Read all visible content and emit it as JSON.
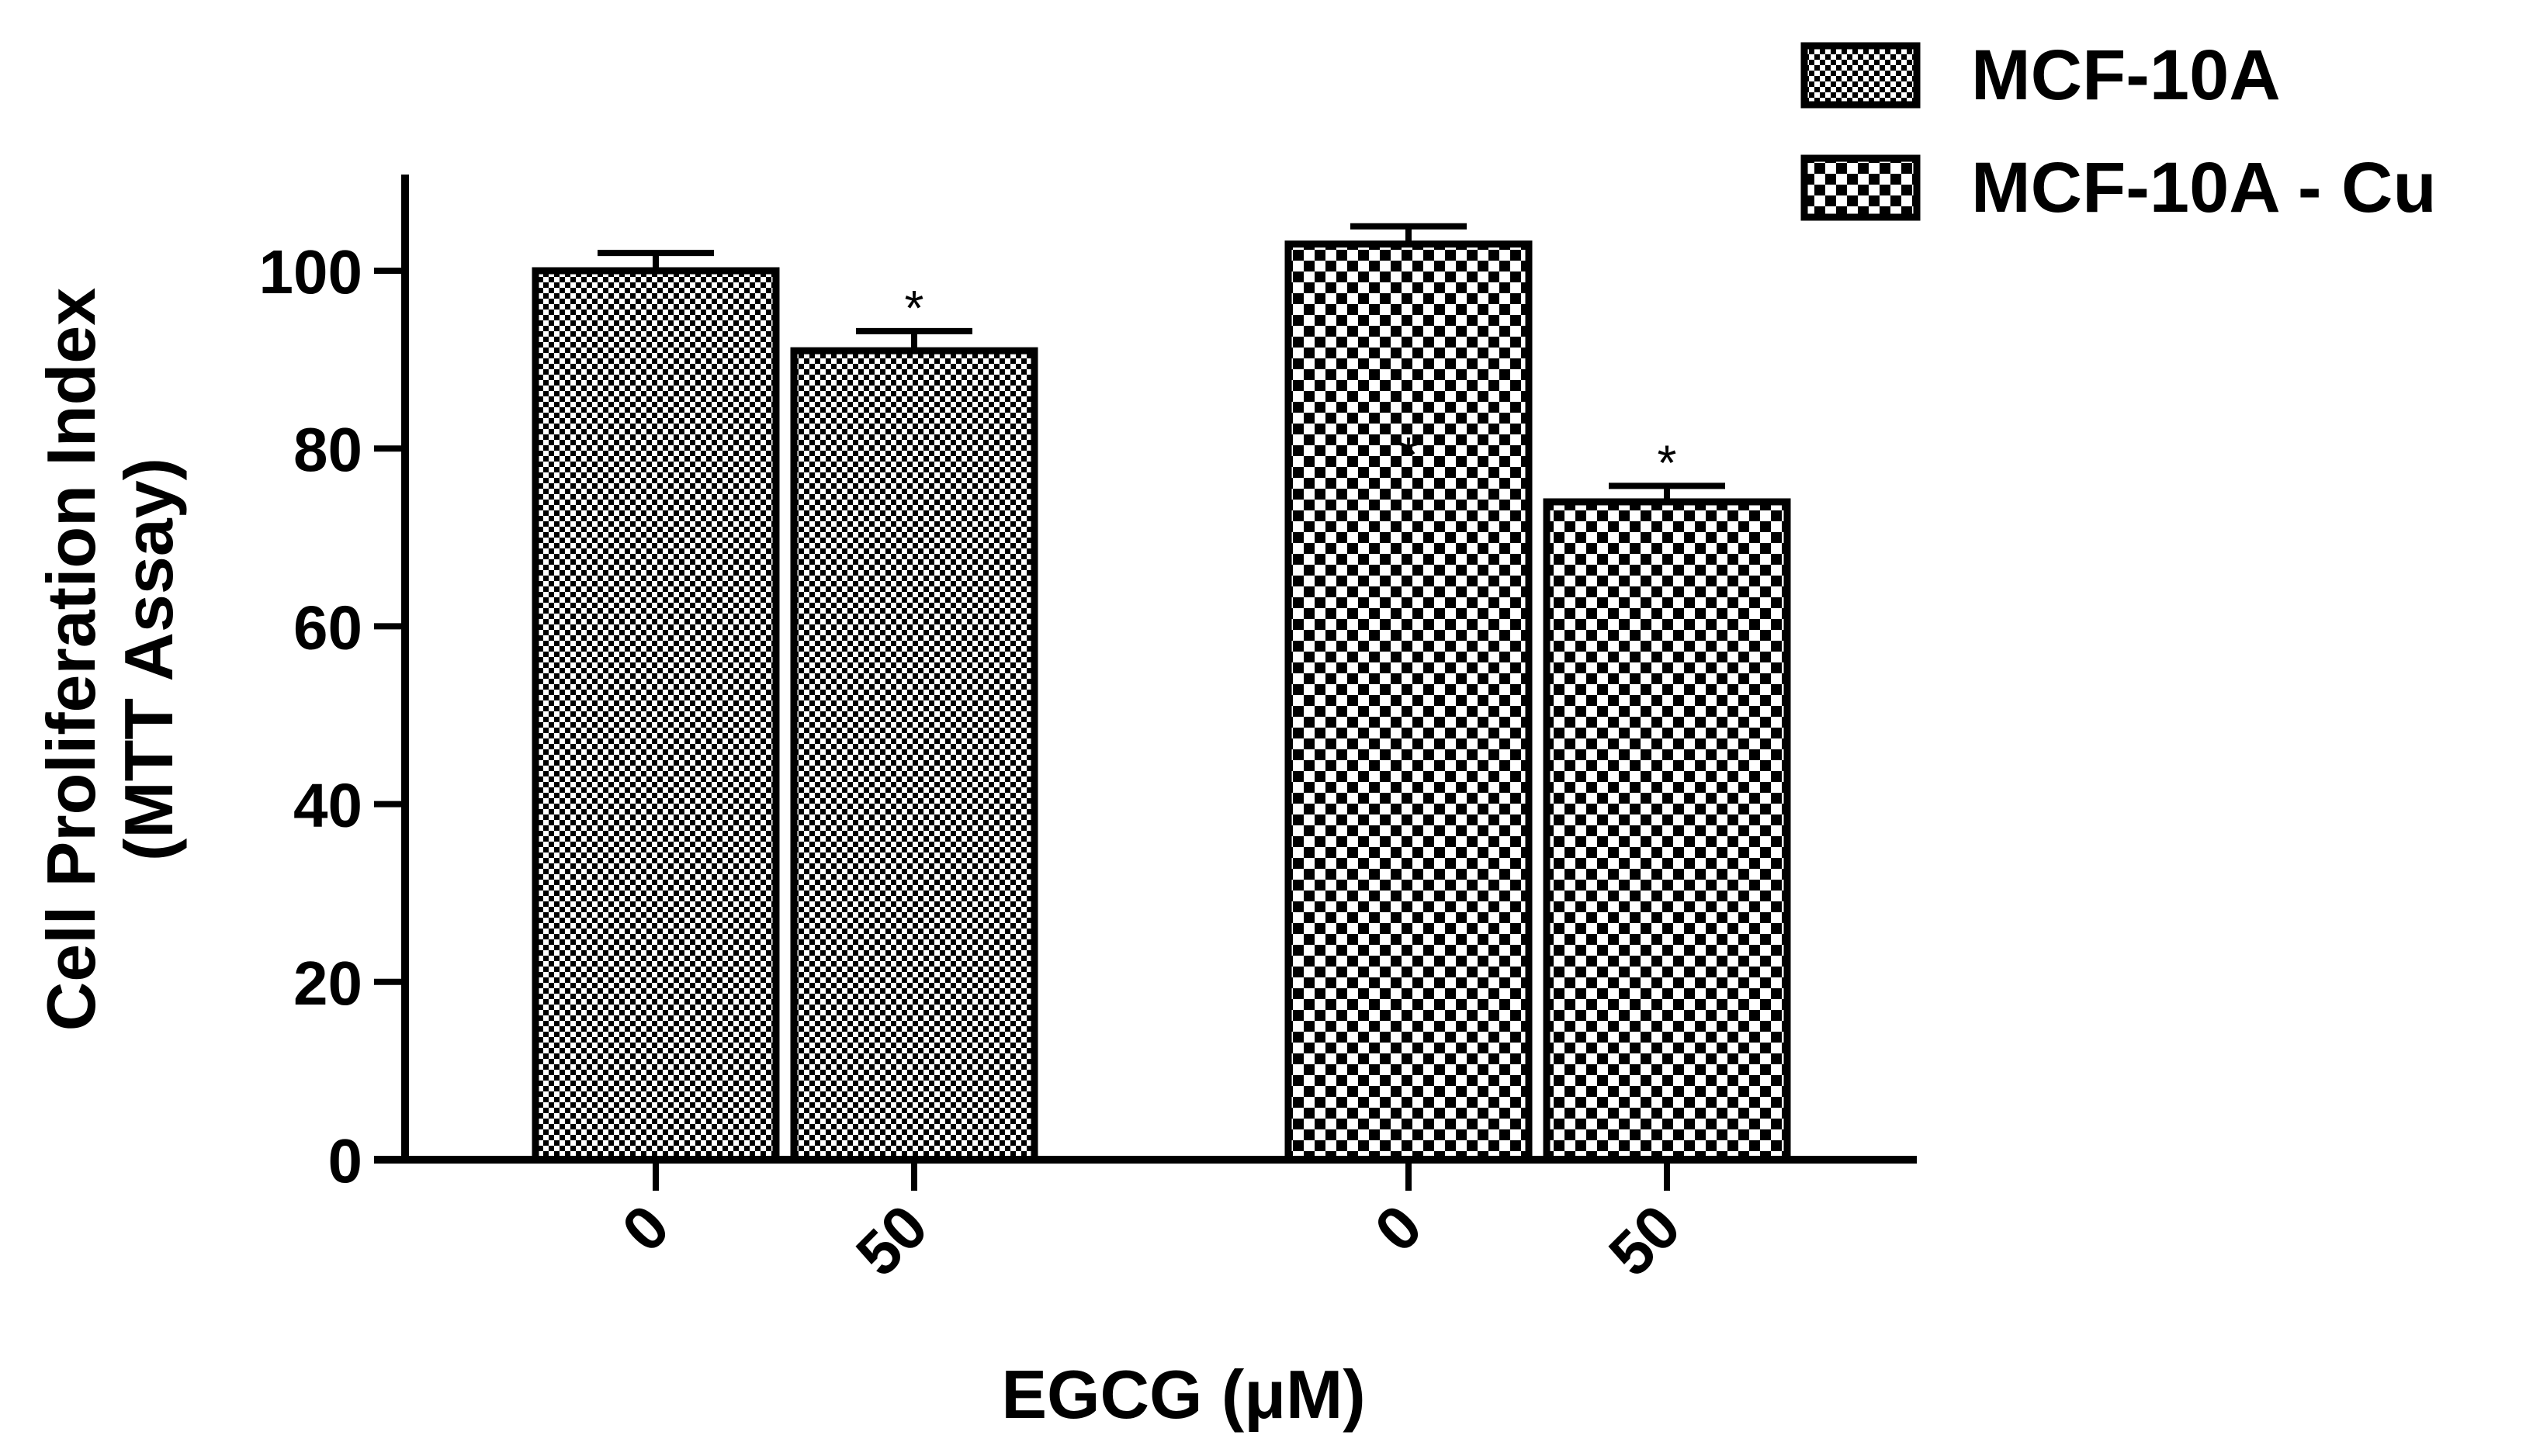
{
  "chart_data": {
    "type": "bar",
    "categories": [
      "0",
      "50"
    ],
    "series": [
      {
        "name": "MCF-10A",
        "values": [
          100,
          91
        ],
        "errors": [
          2,
          2.2
        ],
        "significance": [
          "",
          "*"
        ],
        "pattern": "fine-checker"
      },
      {
        "name": "MCF-10A - Cu",
        "values": [
          103,
          74
        ],
        "errors": [
          2,
          1.8
        ],
        "significance": [
          "*",
          "*"
        ],
        "pattern": "coarse-checker"
      }
    ],
    "title": "",
    "xlabel": "EGCG (μM)",
    "ylabel": [
      "Cell Proliferation Index",
      "(MTT Assay)"
    ],
    "ylim": [
      0,
      100
    ],
    "yticks": [
      0,
      20,
      40,
      60,
      80,
      100
    ],
    "grid": false,
    "legend": {
      "position": "top-right"
    },
    "colors": {
      "bar_fill": "#000000",
      "bar_background": "#ffffff",
      "axis": "#000000"
    }
  }
}
